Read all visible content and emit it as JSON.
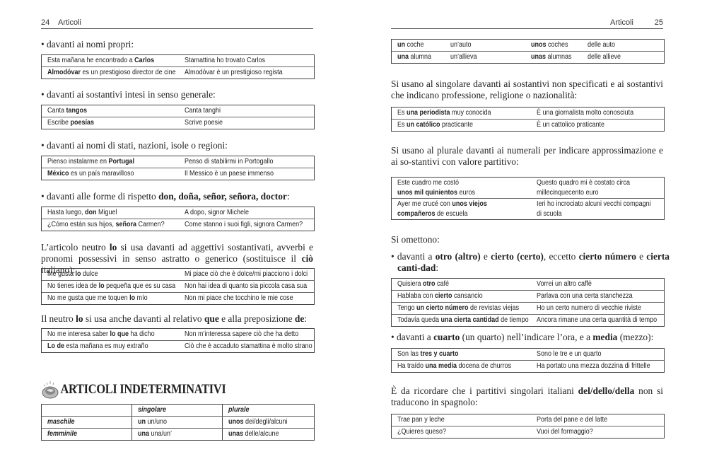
{
  "pages": [
    {
      "header": {
        "number": "24",
        "title": "Articoli"
      },
      "blocks": [
        {
          "type": "bullet",
          "text": [
            "• davanti ai nomi propri:"
          ]
        },
        {
          "type": "table",
          "rows": [
            [
              [
                "Esta mañana he encontrado a ",
                {
                  "b": "Carlos"
                }
              ],
              [
                "Stamattina ho trovato Carlos"
              ]
            ],
            [
              [
                {
                  "b": "Almodóvar"
                },
                " es un prestigioso director de cine"
              ],
              [
                "Almodóvar è un prestigioso regista"
              ]
            ]
          ]
        },
        {
          "type": "bullet",
          "text": [
            "• davanti ai sostantivi intesi in senso generale:"
          ]
        },
        {
          "type": "table",
          "rows": [
            [
              [
                "Canta ",
                {
                  "b": "tangos"
                }
              ],
              [
                "Canta tanghi"
              ]
            ],
            [
              [
                "Escribe ",
                {
                  "b": "poesías"
                }
              ],
              [
                "Scrive poesie"
              ]
            ]
          ]
        },
        {
          "type": "bullet",
          "text": [
            "• davanti ai nomi di stati, nazioni, isole o regioni:"
          ]
        },
        {
          "type": "table",
          "rows": [
            [
              [
                "Pienso instalarme en ",
                {
                  "b": "Portugal"
                }
              ],
              [
                "Penso di stabilirmi in Portogallo"
              ]
            ],
            [
              [
                {
                  "b": "México"
                },
                " es un país maravilloso"
              ],
              [
                "Il Messico è un paese immenso"
              ]
            ]
          ]
        },
        {
          "type": "bullet",
          "text": [
            "• davanti alle forme di rispetto ",
            {
              "b": "don, doña, señor, señora, doctor"
            },
            ":"
          ]
        },
        {
          "type": "table",
          "rows": [
            [
              [
                "Hasta luego, ",
                {
                  "b": "don"
                },
                " Miguel"
              ],
              [
                "A dopo, signor Michele"
              ]
            ],
            [
              [
                "¿Cómo están sus hijos, ",
                {
                  "b": "señora"
                },
                " Carmen?"
              ],
              [
                "Come stanno i suoi figli, signora Carmen?"
              ]
            ]
          ]
        },
        {
          "type": "para",
          "text": [
            "L’articolo neutro ",
            {
              "b": "lo"
            },
            " si usa davanti ad aggettivi sostantivati, avverbi e pronomi possessivi in senso astratto o generico (sostituisce il ",
            {
              "b": "ciò"
            },
            " italiano):"
          ]
        },
        {
          "type": "table",
          "rows": [
            [
              [
                "Me gusta ",
                {
                  "b": "lo"
                },
                " dulce"
              ],
              [
                "Mi piace ciò che è dolce/mi piacciono i dolci"
              ]
            ],
            [
              [
                "No tienes idea de ",
                {
                  "b": "lo"
                },
                " pequeña que es su casa"
              ],
              [
                "Non hai idea di quanto sia piccola casa sua"
              ]
            ],
            [
              [
                "No me gusta que me toquen ",
                {
                  "b": "lo"
                },
                " mío"
              ],
              [
                "Non mi piace che tocchino le mie cose"
              ]
            ]
          ]
        },
        {
          "type": "para",
          "text": [
            "Il neutro ",
            {
              "b": "lo"
            },
            " si usa anche davanti al relativo ",
            {
              "b": "que"
            },
            " e alla preposizione ",
            {
              "b": "de"
            },
            ":"
          ]
        },
        {
          "type": "table",
          "rows": [
            [
              [
                "No me interesa saber ",
                {
                  "b": "lo que"
                },
                " ha dicho"
              ],
              [
                "Non m’interessa sapere ciò che ha detto"
              ]
            ],
            [
              [
                {
                  "b": "Lo de"
                },
                " esta mañana es muy extraño"
              ],
              [
                "Ciò che è accaduto stamattina è molto strano"
              ]
            ]
          ]
        },
        {
          "type": "heading",
          "icon": "globe-icon",
          "text": [
            "ARTICOLI INDETERMINATIVI"
          ]
        },
        {
          "type": "table",
          "grid": true,
          "rows": [
            [
              [
                ""
              ],
              [
                {
                  "bi": "singolare"
                }
              ],
              [
                {
                  "bi": "plurale"
                }
              ]
            ],
            [
              [
                {
                  "bi": "maschile"
                }
              ],
              [
                {
                  "b": "un"
                },
                " un/uno"
              ],
              [
                {
                  "b": "unos"
                },
                " dei/degli/alcuni"
              ]
            ],
            [
              [
                {
                  "bi": "femminile"
                }
              ],
              [
                {
                  "b": "una"
                },
                " una/un’"
              ],
              [
                {
                  "b": "unas"
                },
                " delle/alcune"
              ]
            ]
          ]
        }
      ]
    },
    {
      "header": {
        "number": "25",
        "title": "Articoli"
      },
      "blocks": [
        {
          "type": "table",
          "rows": [
            [
              [
                {
                  "b": "un"
                },
                " coche"
              ],
              [
                "un’auto"
              ],
              [
                {
                  "b": "unos"
                },
                " coches"
              ],
              [
                "delle auto"
              ]
            ],
            [
              [
                {
                  "b": "una"
                },
                " alumna"
              ],
              [
                "un’allieva"
              ],
              [
                {
                  "b": "unas"
                },
                " alumnas"
              ],
              [
                "delle allieve"
              ]
            ]
          ]
        },
        {
          "type": "para",
          "text": [
            "Si usano al singolare davanti ai sostantivi non specificati e ai sostantivi che indicano professione, religione o nazionalità:"
          ]
        },
        {
          "type": "table",
          "rows": [
            [
              [
                "Es ",
                {
                  "b": "una periodista"
                },
                " muy conocida"
              ],
              [
                "È una giornalista molto conosciuta"
              ]
            ],
            [
              [
                "Es ",
                {
                  "b": "un católico"
                },
                " practicante"
              ],
              [
                "È un cattolico praticante"
              ]
            ]
          ]
        },
        {
          "type": "para",
          "text": [
            "Si usano al plurale davanti ai numerali per indicare approssimazione e ai so-stantivi con valore partitivo:"
          ]
        },
        {
          "type": "table",
          "tall": true,
          "rows": [
            [
              [
                "Este cuadro me costó\n",
                {
                  "b": "unos mil quinientos"
                },
                " euros"
              ],
              [
                "Questo quadro mi è costato circa\nmillecinquecento euro"
              ]
            ],
            [
              [
                "Ayer me crucé con ",
                {
                  "b": "unos viejos\ncompañeros"
                },
                " de escuela"
              ],
              [
                "Ieri ho incrociato alcuni vecchi compagni\ndi scuola"
              ]
            ]
          ]
        },
        {
          "type": "para",
          "text": [
            "Si omettono:"
          ]
        },
        {
          "type": "bullet",
          "text": [
            "• davanti a ",
            {
              "b": "otro (altro)"
            },
            " e ",
            {
              "b": "cierto (certo)"
            },
            ", eccetto ",
            {
              "b": "cierto número"
            },
            " e ",
            {
              "b": "cierta canti-dad"
            },
            ":"
          ]
        },
        {
          "type": "table",
          "rows": [
            [
              [
                "Quisiera ",
                {
                  "b": "otro"
                },
                " café"
              ],
              [
                "Vorrei un altro caffè"
              ]
            ],
            [
              [
                "Hablaba con ",
                {
                  "b": "cierto"
                },
                " cansancio"
              ],
              [
                "Parlava con una certa stanchezza"
              ]
            ],
            [
              [
                "Tengo ",
                {
                  "b": "un cierto número"
                },
                " de revistas viejas"
              ],
              [
                "Ho un certo numero di vecchie riviste"
              ]
            ],
            [
              [
                "Todavía queda ",
                {
                  "b": "una cierta cantidad"
                },
                " de tiempo"
              ],
              [
                "Ancora rimane una certa quantità di tempo"
              ]
            ]
          ]
        },
        {
          "type": "bullet",
          "text": [
            "• davanti a ",
            {
              "b": "cuarto"
            },
            " (un quarto) nell’indicare l’ora, e a ",
            {
              "b": "media"
            },
            " (mezzo):"
          ]
        },
        {
          "type": "table",
          "rows": [
            [
              [
                "Son las ",
                {
                  "b": "tres y cuarto"
                }
              ],
              [
                "Sono le tre e un quarto"
              ]
            ],
            [
              [
                "Ha traído ",
                {
                  "b": "una media"
                },
                " docena de churros"
              ],
              [
                "Ha portato una mezza dozzina di frittelle"
              ]
            ]
          ]
        },
        {
          "type": "para",
          "text": [
            "È da ricordare che i partitivi singolari italiani ",
            {
              "b": "del/dello/della"
            },
            " non si traducono in spagnolo:"
          ]
        },
        {
          "type": "table",
          "rows": [
            [
              [
                "Trae pan y leche"
              ],
              [
                "Porta del pane e del latte"
              ]
            ],
            [
              [
                "¿Quieres queso?"
              ],
              [
                "Vuoi del formaggio?"
              ]
            ]
          ]
        }
      ]
    }
  ]
}
